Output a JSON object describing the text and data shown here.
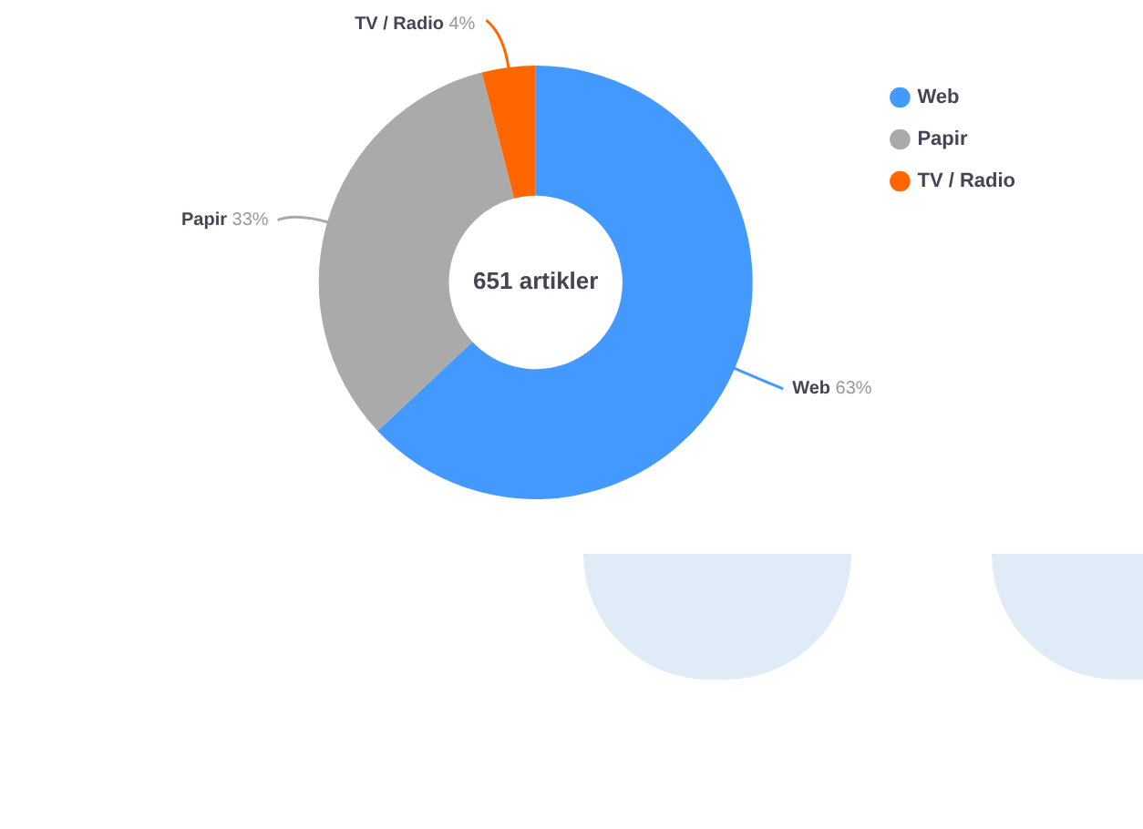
{
  "chart_data": {
    "type": "donut",
    "categories": [
      "Web",
      "Papir",
      "TV / Radio"
    ],
    "values": [
      63,
      33,
      4
    ],
    "value_labels": [
      "63%",
      "33%",
      "4%"
    ],
    "colors": [
      "#4499ff",
      "#aaaaaa",
      "#ff6600"
    ],
    "annotations": [
      "651 artikler"
    ],
    "legend": "top right"
  }
}
